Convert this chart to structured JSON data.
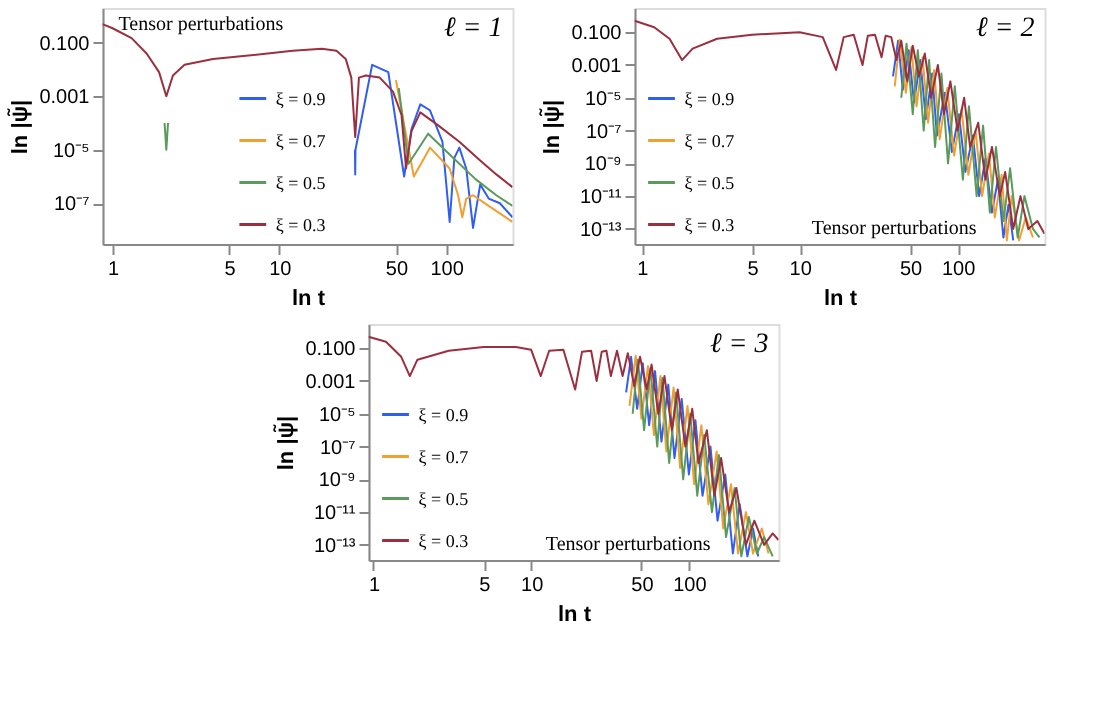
{
  "chart_data": [
    {
      "type": "line",
      "title": "ℓ = 1",
      "xlabel": "ln t",
      "ylabel": "ln |ψ̃|",
      "annotations": [
        "Tensor perturbations"
      ],
      "log": "xy",
      "legend": "center",
      "xlim": [
        0.87,
        250
      ],
      "ylim": [
        3e-09,
        2
      ],
      "xticks": [
        1,
        5,
        10,
        50,
        100
      ],
      "yticks": [
        {
          "value": 0.1,
          "label": "0.100"
        },
        {
          "value": 0.001,
          "label": "0.001"
        },
        {
          "value": 1e-05,
          "label": "10⁻⁵"
        },
        {
          "value": 1e-07,
          "label": "10⁻⁷"
        }
      ],
      "series": [
        {
          "name": "ξ = 0.9",
          "color": "#2f5ef0",
          "x": [
            28.4,
            28.5,
            28.6,
            36,
            45,
            56,
            62,
            70,
            80,
            95,
            105,
            112,
            120,
            132,
            145,
            160,
            180,
            210,
            250
          ],
          "values": [
            1e-05,
            1.2e-06,
            1e-05,
            0.015,
            0.008,
            1e-06,
            6e-05,
            0.0005,
            0.0003,
            2e-05,
            2e-08,
            5e-06,
            1.2e-05,
            2e-06,
            1.2e-08,
            5e-07,
            1.5e-07,
            1e-07,
            3e-08
          ]
        },
        {
          "name": "ξ = 0.7",
          "color": "#f0a030",
          "x": [
            50,
            64,
            80,
            105,
            118,
            125,
            132,
            145,
            180,
            250
          ],
          "values": [
            0.004,
            1e-06,
            1.2e-05,
            2e-06,
            2e-07,
            3e-08,
            1.5e-07,
            2e-07,
            8e-08,
            2e-08
          ]
        },
        {
          "name": "ξ = 0.5",
          "color": "#5a9a5a",
          "x": [
            2.05,
            2.1,
            2.15,
            3,
            52,
            59.5,
            78,
            110,
            150,
            200,
            250
          ],
          "values": [
            0.0001,
            1e-05,
            0.0001,
            null,
            0.002,
            3e-06,
            4e-05,
            5e-06,
            8e-07,
            2e-07,
            8e-08
          ]
        },
        {
          "name": "ξ = 0.3",
          "color": "#9c2f3f",
          "x": [
            0.87,
            1,
            1.3,
            1.6,
            1.9,
            2.1,
            2.3,
            2.7,
            4,
            7,
            12,
            18,
            22,
            25,
            27,
            28.5,
            30,
            33,
            40,
            48,
            54,
            57.5,
            62,
            70,
            90,
            120,
            160,
            200,
            250
          ],
          "values": [
            0.5,
            0.35,
            0.15,
            0.04,
            0.008,
            0.001,
            0.006,
            0.015,
            0.025,
            0.035,
            0.05,
            0.06,
            0.05,
            0.025,
            0.005,
            3e-05,
            0.005,
            0.006,
            0.005,
            0.0015,
            0.0002,
            2e-06,
            5e-05,
            0.00025,
            8e-05,
            2e-05,
            4e-06,
            1.2e-06,
            4e-07
          ]
        }
      ]
    },
    {
      "type": "line",
      "title": "ℓ = 2",
      "xlabel": "ln t",
      "ylabel": "ln |ψ̃|",
      "annotations": [
        "Tensor perturbations"
      ],
      "log": "xy",
      "legend": "left",
      "xlim": [
        0.9,
        355
      ],
      "ylim": [
        1.2e-14,
        3
      ],
      "xticks": [
        1,
        5,
        10,
        50,
        100
      ],
      "yticks": [
        {
          "value": 0.1,
          "label": "0.100"
        },
        0.001,
        {
          "value": 1e-05,
          "label": "10⁻⁵"
        },
        {
          "value": 1e-07,
          "label": "10⁻⁷"
        },
        {
          "value": 1e-09,
          "label": "10⁻⁹"
        },
        {
          "value": 1e-11,
          "label": "10⁻¹¹"
        },
        {
          "value": 1e-13,
          "label": "10⁻¹³"
        }
      ],
      "series": [
        {
          "name": "ξ = 0.9",
          "color": "#2f5ef0",
          "x": [
            39,
            42,
            45,
            49,
            53,
            58,
            63,
            69,
            74,
            83,
            92,
            102,
            112,
            125,
            137,
            150,
            165,
            180,
            195,
            210,
            225
          ],
          "values": [
            0.0002,
            0.03,
            3e-05,
            0.008,
            5e-06,
            0.002,
            5e-07,
            0.0003,
            5e-08,
            2e-05,
            5e-09,
            1e-06,
            3e-10,
            5e-08,
            1e-11,
            2e-09,
            1e-12,
            1e-10,
            3e-14,
            3e-12,
            2e-14
          ]
        },
        {
          "name": "ξ = 0.7",
          "color": "#f0a030",
          "x": [
            40,
            43,
            47,
            51,
            55,
            60,
            65,
            71,
            77,
            86,
            95,
            106,
            117,
            130,
            143,
            158,
            172,
            190,
            205,
            220,
            245,
            270,
            300
          ],
          "values": [
            5e-05,
            0.035,
            2e-05,
            0.012,
            3e-06,
            0.003,
            3e-07,
            0.0005,
            3e-08,
            4e-05,
            3e-09,
            2e-06,
            2e-10,
            1e-07,
            1e-11,
            4e-09,
            5e-13,
            2e-10,
            2e-14,
            1e-11,
            2e-14,
            5e-13,
            3e-14
          ]
        },
        {
          "name": "ξ = 0.5",
          "color": "#5a9a5a",
          "x": [
            44,
            47.5,
            52,
            56,
            61,
            66,
            72,
            79,
            87,
            96,
            108,
            118,
            132,
            145,
            160,
            175,
            195,
            215,
            240,
            265,
            300,
            330
          ],
          "values": [
            1e-05,
            0.02,
            1e-06,
            0.008,
            1e-07,
            0.002,
            1e-08,
            0.0003,
            1e-09,
            5e-05,
            1e-10,
            3e-06,
            1e-11,
            2e-07,
            1e-12,
            1e-08,
            3e-13,
            5e-10,
            3e-14,
            1e-11,
            1e-13,
            3e-14
          ]
        },
        {
          "name": "ξ = 0.3",
          "color": "#9c2f3f",
          "x": [
            0.9,
            1.2,
            1.5,
            1.8,
            2.1,
            3,
            5,
            10,
            14,
            17,
            19,
            22,
            25,
            27,
            30,
            33,
            35,
            38,
            41,
            44,
            48,
            52,
            57,
            62,
            68,
            75,
            82,
            90,
            100,
            110,
            120,
            135,
            150,
            165,
            185,
            200,
            225,
            250,
            280,
            320,
            355
          ],
          "values": [
            0.5,
            0.2,
            0.04,
            0.002,
            0.01,
            0.04,
            0.07,
            0.1,
            0.05,
            0.0005,
            0.05,
            0.07,
            0.001,
            0.06,
            0.07,
            0.003,
            0.06,
            0.05,
            0.002,
            0.03,
            0.0001,
            0.015,
            0.0002,
            0.005,
            1e-05,
            0.001,
            1e-06,
            0.0001,
            1e-07,
            1e-05,
            1e-08,
            3e-07,
            1e-10,
            1e-08,
            1e-11,
            3e-10,
            1e-13,
            1e-11,
            1e-13,
            3e-13,
            5e-14
          ]
        }
      ]
    },
    {
      "type": "line",
      "title": "ℓ = 3",
      "xlabel": "ln t",
      "ylabel": "ln |ψ̃|",
      "annotations": [
        "Tensor perturbations"
      ],
      "log": "xy",
      "legend": "left",
      "xlim": [
        0.93,
        370
      ],
      "ylim": [
        1.2e-14,
        3
      ],
      "xticks": [
        1,
        5,
        10,
        50,
        100
      ],
      "yticks": [
        {
          "value": 0.1,
          "label": "0.100"
        },
        0.001,
        {
          "value": 1e-05,
          "label": "10⁻⁵"
        },
        {
          "value": 1e-07,
          "label": "10⁻⁷"
        },
        {
          "value": 1e-09,
          "label": "10⁻⁹"
        },
        {
          "value": 1e-11,
          "label": "10⁻¹¹"
        },
        {
          "value": 1e-13,
          "label": "10⁻¹³"
        }
      ],
      "series": [
        {
          "name": "ξ = 0.9",
          "color": "#2f5ef0",
          "x": [
            40,
            43,
            47,
            51,
            56,
            61,
            67,
            74,
            81,
            90,
            100,
            110,
            122,
            137,
            152,
            170,
            190,
            210,
            235,
            255,
            275
          ],
          "values": [
            0.0002,
            0.03,
            2e-05,
            0.012,
            2e-06,
            0.004,
            2e-07,
            0.0006,
            2e-08,
            8e-05,
            2e-09,
            4e-06,
            1e-10,
            1e-07,
            3e-12,
            2e-09,
            3e-14,
            3e-11,
            2e-14,
            1e-12,
            2e-14
          ]
        },
        {
          "name": "ξ = 0.7",
          "color": "#f0a030",
          "x": [
            42,
            46,
            50,
            55,
            60,
            66,
            72,
            80,
            88,
            98,
            108,
            120,
            133,
            150,
            165,
            185,
            205,
            230,
            255,
            290,
            320
          ],
          "values": [
            3e-05,
            0.035,
            5e-06,
            0.008,
            5e-07,
            0.002,
            5e-08,
            0.0004,
            5e-09,
            3e-05,
            5e-10,
            2e-06,
            3e-11,
            5e-08,
            1e-12,
            5e-10,
            3e-14,
            1e-11,
            3e-14,
            1e-12,
            3e-14
          ]
        },
        {
          "name": "ξ = 0.5",
          "color": "#5a9a5a",
          "x": [
            44,
            47.5,
            52,
            57,
            63,
            68,
            75,
            83,
            92,
            102,
            113,
            125,
            140,
            155,
            172,
            195,
            215,
            240,
            270,
            300,
            340
          ],
          "values": [
            1e-05,
            0.02,
            1e-06,
            0.006,
            1e-07,
            0.0015,
            1e-08,
            0.0002,
            1e-09,
            1e-05,
            1e-10,
            5e-07,
            1e-11,
            3e-08,
            3e-13,
            3e-10,
            2e-14,
            5e-12,
            3e-14,
            3e-13,
            2e-14
          ]
        },
        {
          "name": "ξ = 0.3",
          "color": "#9c2f3f",
          "x": [
            0.93,
            1.2,
            1.5,
            1.7,
            1.9,
            3,
            5,
            8,
            10,
            11.5,
            13,
            16,
            19,
            21,
            24,
            26,
            28,
            30,
            32,
            35,
            38,
            41,
            45,
            49,
            54,
            58,
            64,
            70,
            78,
            85,
            95,
            105,
            115,
            130,
            145,
            160,
            180,
            200,
            230,
            260,
            300,
            340,
            370
          ],
          "values": [
            0.5,
            0.25,
            0.03,
            0.002,
            0.02,
            0.07,
            0.12,
            0.12,
            0.08,
            0.002,
            0.07,
            0.08,
            0.0003,
            0.06,
            0.07,
            0.001,
            0.06,
            0.07,
            0.002,
            0.07,
            0.002,
            0.05,
            0.0005,
            0.03,
            0.0003,
            0.01,
            1e-05,
            0.002,
            1e-06,
            0.0003,
            1e-07,
            2e-05,
            1e-08,
            1e-06,
            1e-10,
            2e-08,
            1e-11,
            3e-10,
            1e-13,
            3e-12,
            1e-13,
            5e-13,
            2e-13
          ]
        }
      ]
    }
  ]
}
